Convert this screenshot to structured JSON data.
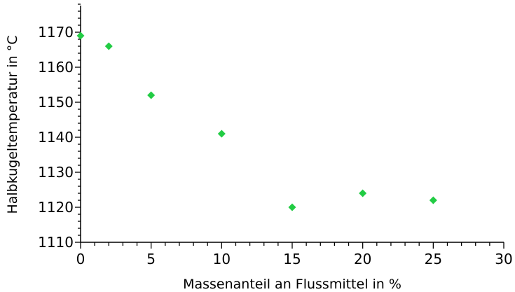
{
  "chart_data": {
    "type": "scatter",
    "title": "",
    "xlabel": "Massenanteil an Flussmittel in %",
    "ylabel": "Halbkugeltemperatur in °C",
    "xlim": [
      0,
      30
    ],
    "ylim": [
      1110,
      1180
    ],
    "x_ticks": [
      0,
      5,
      10,
      15,
      20,
      25,
      30
    ],
    "y_ticks": [
      1110,
      1120,
      1130,
      1140,
      1150,
      1160,
      1170
    ],
    "grid": false,
    "legend": "none",
    "marker": "diamond",
    "marker_color": "#22cc44",
    "series": [
      {
        "x": [
          0,
          2,
          5,
          10,
          15,
          20,
          25
        ],
        "y": [
          1169,
          1166,
          1152,
          1141,
          1120,
          1124,
          1122
        ]
      }
    ]
  }
}
